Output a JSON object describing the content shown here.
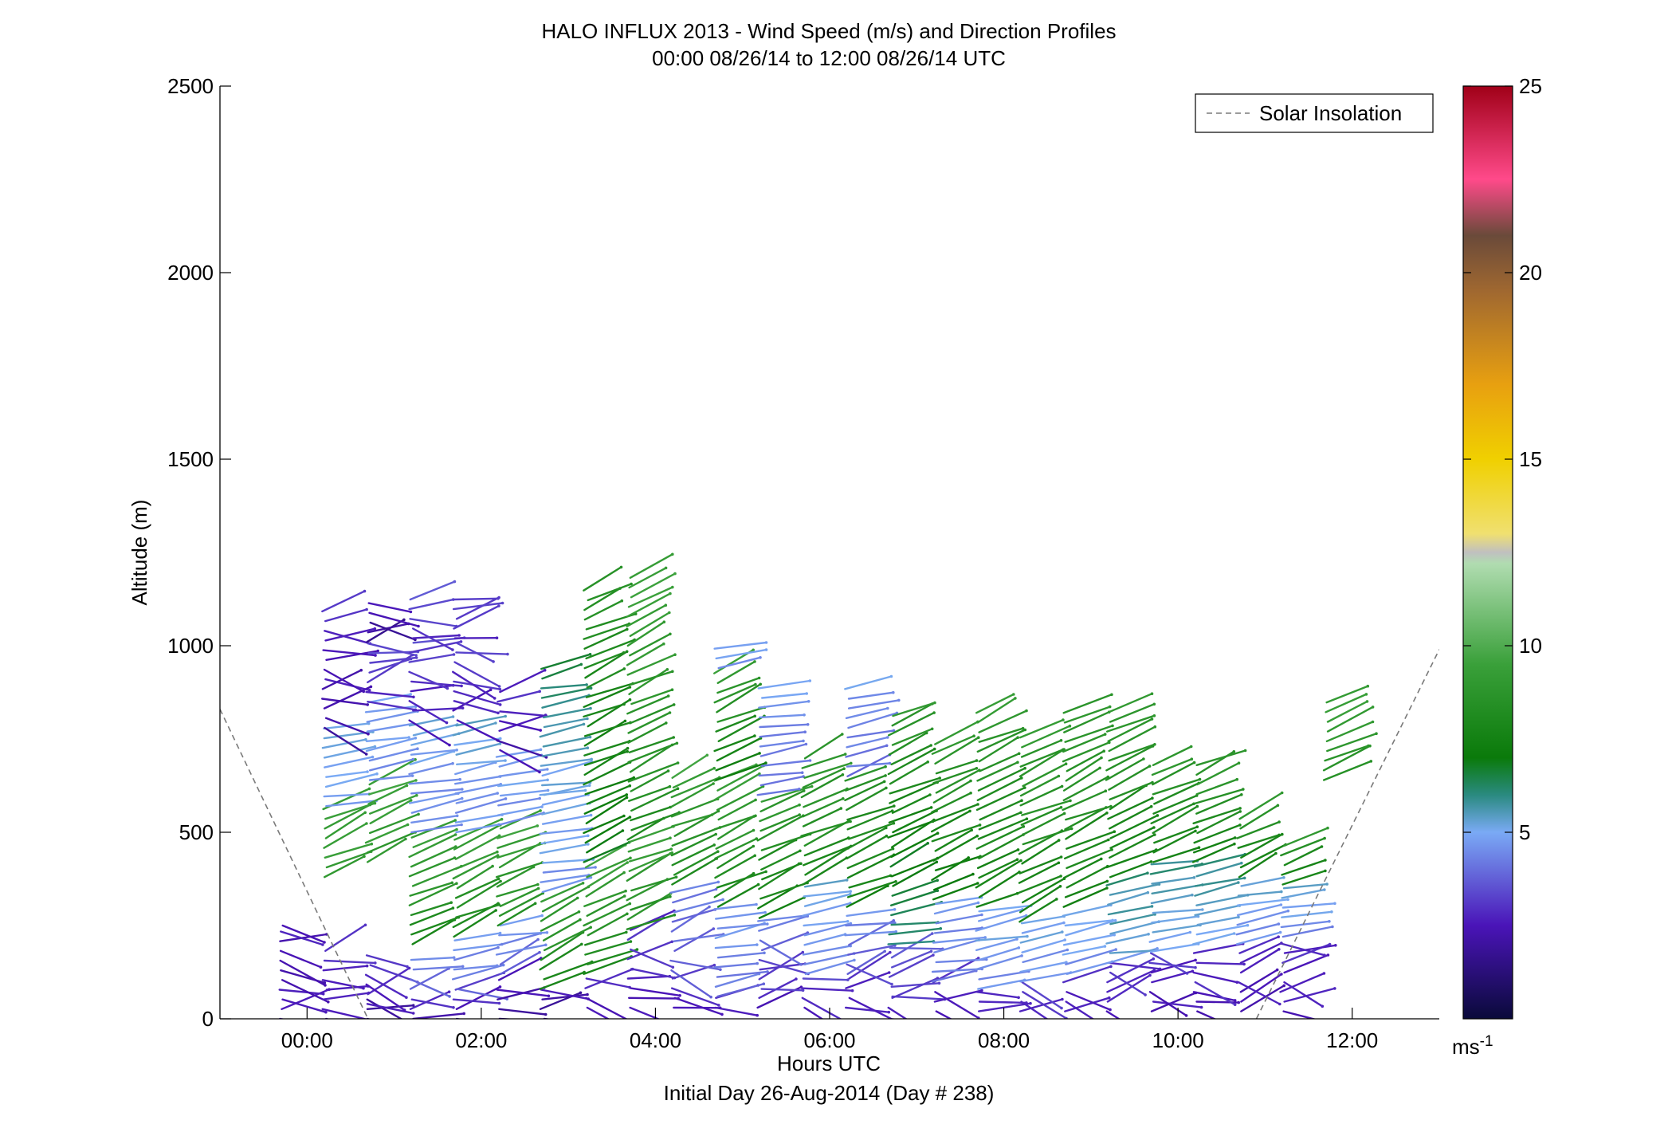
{
  "chart_data": {
    "type": "wind-barb-profile",
    "title": "HALO INFLUX 2013 - Wind Speed (m/s) and Direction Profiles",
    "subtitle": "00:00 08/26/14 to 12:00 08/26/14  UTC",
    "xlabel": "Hours UTC",
    "xlabel2": "Initial Day 26-Aug-2014 (Day # 238)",
    "ylabel": "Altitude (m)",
    "xlim": [
      -1.0,
      13.0
    ],
    "ylim": [
      0,
      2500
    ],
    "x_ticks": [
      {
        "value": 0,
        "label": "00:00"
      },
      {
        "value": 2,
        "label": "02:00"
      },
      {
        "value": 4,
        "label": "04:00"
      },
      {
        "value": 6,
        "label": "06:00"
      },
      {
        "value": 8,
        "label": "08:00"
      },
      {
        "value": 10,
        "label": "10:00"
      },
      {
        "value": 12,
        "label": "12:00"
      }
    ],
    "y_ticks": [
      {
        "value": 0,
        "label": "0"
      },
      {
        "value": 500,
        "label": "500"
      },
      {
        "value": 1000,
        "label": "1000"
      },
      {
        "value": 1500,
        "label": "1500"
      },
      {
        "value": 2000,
        "label": "2000"
      },
      {
        "value": 2500,
        "label": "2500"
      }
    ],
    "legend": {
      "label": "Solar Insolation",
      "position": "top-right",
      "style": "dashed",
      "color": "#7a7a7a"
    },
    "solar_insolation": [
      {
        "x": -1.0,
        "y": 830
      },
      {
        "x": 0.7,
        "y": 0
      },
      {
        "x": 10.9,
        "y": 0
      },
      {
        "x": 13.0,
        "y": 990
      }
    ],
    "colorbar": {
      "min": 0,
      "max": 25,
      "ticks": [
        5,
        10,
        15,
        20,
        25
      ],
      "unit": "ms",
      "unit_exponent": "-1",
      "stops": [
        {
          "v": 0,
          "c": "#0a0a3a"
        },
        {
          "v": 2.5,
          "c": "#4a14b8"
        },
        {
          "v": 5,
          "c": "#7aaaf5"
        },
        {
          "v": 6,
          "c": "#2a8a80"
        },
        {
          "v": 7,
          "c": "#0a7a0a"
        },
        {
          "v": 9.5,
          "c": "#3aa03a"
        },
        {
          "v": 12.2,
          "c": "#b0dcb0"
        },
        {
          "v": 12.5,
          "c": "#c0c0c0"
        },
        {
          "v": 13,
          "c": "#f0e070"
        },
        {
          "v": 15,
          "c": "#f0d000"
        },
        {
          "v": 17,
          "c": "#e8a010"
        },
        {
          "v": 19.5,
          "c": "#a06830"
        },
        {
          "v": 21,
          "c": "#6a4a3a"
        },
        {
          "v": 22.5,
          "c": "#ff4a8a"
        },
        {
          "v": 25,
          "c": "#a00018"
        }
      ]
    },
    "profiles": [
      {
        "t": -0.3,
        "segments": [
          [
            0,
            2.5,
            2.5,
            250
          ],
          [
            250,
            2.5,
            3.0,
            250
          ]
        ]
      },
      {
        "t": 0.2,
        "segments": [
          [
            0,
            2.5,
            3.0,
            200
          ],
          [
            380,
            9.0,
            9.5,
            570
          ],
          [
            570,
            4.8,
            5.2,
            780
          ],
          [
            780,
            2.2,
            3.0,
            1100
          ]
        ]
      },
      {
        "t": 0.7,
        "segments": [
          [
            0,
            1.8,
            2.0,
            60
          ]
        ]
      },
      {
        "t": 0.7,
        "segments": [
          [
            420,
            9.0,
            9.5,
            640
          ],
          [
            640,
            4.5,
            5.0,
            850
          ],
          [
            850,
            2.8,
            3.3,
            1010
          ],
          [
            1010,
            1.8,
            2.3,
            1120
          ]
        ]
      },
      {
        "t": 0.7,
        "segments": [
          [
            40,
            2.5,
            3.2,
            180
          ]
        ]
      },
      {
        "t": 1.2,
        "segments": [
          [
            0,
            2.5,
            3.0,
            60
          ],
          [
            80,
            4.0,
            4.5,
            180
          ],
          [
            200,
            8.0,
            9.5,
            500
          ],
          [
            500,
            4.2,
            5.2,
            800
          ],
          [
            800,
            2.5,
            3.5,
            1020
          ],
          [
            1020,
            3.0,
            3.5,
            1130
          ]
        ]
      },
      {
        "t": 1.7,
        "segments": [
          [
            0,
            2.5,
            3.0,
            80
          ],
          [
            80,
            4.0,
            4.8,
            220
          ],
          [
            220,
            8.0,
            9.5,
            500
          ],
          [
            500,
            4.5,
            5.3,
            800
          ],
          [
            800,
            2.5,
            3.2,
            1020
          ],
          [
            1020,
            3.0,
            3.5,
            1130
          ]
        ]
      },
      {
        "t": 2.2,
        "segments": [
          [
            0,
            2.0,
            2.5,
            120
          ],
          [
            120,
            4.0,
            4.8,
            250
          ],
          [
            250,
            8.5,
            9.5,
            520
          ],
          [
            520,
            4.5,
            5.0,
            720
          ],
          [
            720,
            2.2,
            3.0,
            900
          ]
        ]
      },
      {
        "t": 2.7,
        "segments": [
          [
            0,
            2.0,
            2.5,
            80
          ],
          [
            80,
            8.0,
            9.0,
            330
          ],
          [
            340,
            4.6,
            5.2,
            600
          ],
          [
            600,
            5.0,
            6.5,
            960
          ]
        ]
      },
      {
        "t": 3.2,
        "segments": [
          [
            30,
            2.5,
            3.0,
            120
          ],
          [
            120,
            8.0,
            9.5,
            420
          ],
          [
            420,
            7.0,
            8.5,
            1170
          ]
        ]
      },
      {
        "t": 3.7,
        "segments": [
          [
            30,
            2.5,
            3.0,
            240
          ],
          [
            240,
            8.5,
            9.5,
            480
          ],
          [
            480,
            8.0,
            9.5,
            1200
          ]
        ]
      },
      {
        "t": 4.2,
        "segments": [
          [
            30,
            2.5,
            3.0,
            120
          ],
          [
            130,
            3.5,
            4.5,
            360
          ],
          [
            360,
            8.0,
            9.5,
            650
          ]
        ]
      },
      {
        "t": 4.7,
        "segments": [
          [
            30,
            2.5,
            3.0,
            60
          ],
          [
            60,
            4.0,
            4.8,
            300
          ],
          [
            300,
            8.0,
            9.5,
            640
          ],
          [
            640,
            7.0,
            9.5,
            940
          ],
          [
            940,
            4.5,
            5.2,
            1010
          ]
        ]
      },
      {
        "t": 5.2,
        "segments": [
          [
            30,
            2.5,
            3.0,
            80
          ],
          [
            80,
            3.0,
            4.2,
            270
          ],
          [
            270,
            7.5,
            9.0,
            600
          ],
          [
            600,
            4.0,
            4.8,
            900
          ]
        ]
      },
      {
        "t": 5.7,
        "segments": [
          [
            30,
            2.5,
            3.5,
            120
          ],
          [
            120,
            4.5,
            5.2,
            360
          ],
          [
            360,
            8.0,
            9.0,
            720
          ]
        ]
      },
      {
        "t": 6.2,
        "segments": [
          [
            30,
            2.5,
            3.0,
            120
          ],
          [
            120,
            3.5,
            4.8,
            300
          ],
          [
            300,
            7.5,
            8.5,
            650
          ],
          [
            650,
            4.0,
            4.8,
            890
          ]
        ]
      },
      {
        "t": 6.7,
        "segments": [
          [
            30,
            2.5,
            3.0,
            60
          ],
          [
            60,
            3.0,
            4.0,
            200
          ],
          [
            200,
            6.0,
            7.5,
            500
          ],
          [
            500,
            7.5,
            9.0,
            820
          ]
        ]
      },
      {
        "t": 7.2,
        "segments": [
          [
            20,
            2.5,
            3.0,
            100
          ],
          [
            100,
            4.0,
            4.8,
            320
          ],
          [
            320,
            7.0,
            9.0,
            760
          ]
        ]
      },
      {
        "t": 7.7,
        "segments": [
          [
            20,
            2.5,
            3.0,
            80
          ],
          [
            80,
            4.5,
            5.2,
            300
          ],
          [
            300,
            7.5,
            9.0,
            820
          ]
        ]
      },
      {
        "t": 8.2,
        "segments": [
          [
            20,
            2.5,
            3.2,
            100
          ],
          [
            100,
            4.5,
            5.2,
            260
          ],
          [
            260,
            7.5,
            9.0,
            760
          ]
        ]
      },
      {
        "t": 8.7,
        "segments": [
          [
            20,
            2.5,
            3.2,
            120
          ],
          [
            120,
            4.5,
            5.5,
            300
          ],
          [
            300,
            7.5,
            9.0,
            830
          ]
        ]
      },
      {
        "t": 9.2,
        "segments": [
          [
            20,
            2.5,
            3.0,
            150
          ],
          [
            150,
            5.0,
            6.0,
            380
          ],
          [
            380,
            7.5,
            9.0,
            840
          ]
        ]
      },
      {
        "t": 9.7,
        "segments": [
          [
            20,
            2.5,
            3.0,
            180
          ],
          [
            180,
            5.0,
            6.0,
            420
          ],
          [
            420,
            7.5,
            9.0,
            700
          ]
        ]
      },
      {
        "t": 10.2,
        "segments": [
          [
            20,
            2.5,
            3.0,
            200
          ],
          [
            200,
            5.0,
            6.0,
            420
          ],
          [
            420,
            7.5,
            9.0,
            700
          ]
        ]
      },
      {
        "t": 10.7,
        "segments": [
          [
            20,
            2.5,
            3.0,
            200
          ],
          [
            200,
            4.5,
            5.5,
            380
          ],
          [
            380,
            7.5,
            9.0,
            560
          ]
        ]
      },
      {
        "t": 11.2,
        "segments": [
          [
            20,
            2.5,
            3.0,
            220
          ],
          [
            220,
            4.5,
            5.5,
            360
          ],
          [
            360,
            7.5,
            9.0,
            470
          ]
        ]
      },
      {
        "t": 11.7,
        "segments": [
          [
            640,
            8.5,
            9.5,
            860
          ]
        ]
      }
    ]
  }
}
